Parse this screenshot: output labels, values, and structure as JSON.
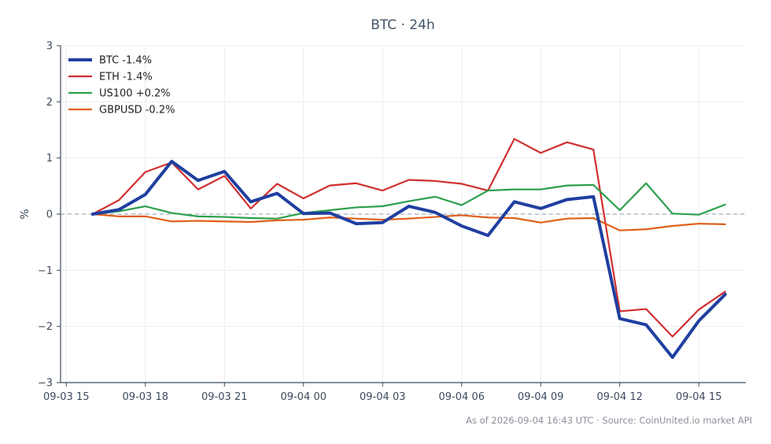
{
  "chart_data": {
    "type": "line",
    "title": "BTC · 24h",
    "ylabel": "%",
    "xlabel": "",
    "ylim": [
      -3,
      3
    ],
    "yticks": [
      {
        "v": 3,
        "label": "3"
      },
      {
        "v": 2,
        "label": "2"
      },
      {
        "v": 1,
        "label": "1"
      },
      {
        "v": 0,
        "label": "0"
      },
      {
        "v": -1,
        "label": "−1"
      },
      {
        "v": -2,
        "label": "−2"
      },
      {
        "v": -3,
        "label": "−3"
      }
    ],
    "xlim": [
      "2026-09-03T14:47",
      "2026-09-04T16:47"
    ],
    "xticks": [
      {
        "t": "2026-09-03T15:00",
        "label": "09-03 15"
      },
      {
        "t": "2026-09-03T18:00",
        "label": "09-03 18"
      },
      {
        "t": "2026-09-03T21:00",
        "label": "09-03 21"
      },
      {
        "t": "2026-09-04T00:00",
        "label": "09-04 00"
      },
      {
        "t": "2026-09-04T03:00",
        "label": "09-04 03"
      },
      {
        "t": "2026-09-04T06:00",
        "label": "09-04 06"
      },
      {
        "t": "2026-09-04T09:00",
        "label": "09-04 09"
      },
      {
        "t": "2026-09-04T12:00",
        "label": "09-04 12"
      },
      {
        "t": "2026-09-04T15:00",
        "label": "09-04 15"
      }
    ],
    "x": [
      "2026-09-03T16:00",
      "2026-09-03T17:00",
      "2026-09-03T18:00",
      "2026-09-03T19:00",
      "2026-09-03T20:00",
      "2026-09-03T21:00",
      "2026-09-03T22:00",
      "2026-09-03T23:00",
      "2026-09-04T00:00",
      "2026-09-04T01:00",
      "2026-09-04T02:00",
      "2026-09-04T03:00",
      "2026-09-04T04:00",
      "2026-09-04T05:00",
      "2026-09-04T06:00",
      "2026-09-04T07:00",
      "2026-09-04T08:00",
      "2026-09-04T09:00",
      "2026-09-04T10:00",
      "2026-09-04T11:00",
      "2026-09-04T12:00",
      "2026-09-04T13:00",
      "2026-09-04T14:00",
      "2026-09-04T15:00",
      "2026-09-04T16:00"
    ],
    "series": [
      {
        "name": "BTC -1.4%",
        "color": "#1f3fa0",
        "width": 4,
        "values": [
          0,
          0.08,
          0.35,
          0.94,
          0.6,
          0.76,
          0.22,
          0.37,
          0.01,
          0.02,
          -0.17,
          -0.15,
          0.14,
          0.03,
          -0.21,
          -0.38,
          0.22,
          0.1,
          0.26,
          0.31,
          -1.86,
          -1.97,
          -2.55,
          -1.9,
          -1.43
        ]
      },
      {
        "name": "ETH -1.4%",
        "color": "#d12f2f",
        "width": 2.2,
        "values": [
          0,
          0.25,
          0.75,
          0.92,
          0.44,
          0.68,
          0.1,
          0.54,
          0.28,
          0.51,
          0.55,
          0.42,
          0.61,
          0.59,
          0.54,
          0.42,
          1.34,
          1.09,
          1.28,
          1.15,
          -1.73,
          -1.69,
          -2.18,
          -1.7,
          -1.38
        ]
      },
      {
        "name": "US100 +0.2%",
        "color": "#2ca04c",
        "width": 2.2,
        "values": [
          0,
          0.05,
          0.14,
          0.02,
          -0.04,
          -0.05,
          -0.07,
          -0.08,
          0.02,
          0.07,
          0.12,
          0.14,
          0.23,
          0.31,
          0.16,
          0.42,
          0.44,
          0.44,
          0.51,
          0.52,
          0.07,
          0.55,
          0.01,
          -0.01,
          0.17
        ]
      },
      {
        "name": "GBPUSD -0.2%",
        "color": "#e0601a",
        "width": 2.2,
        "values": [
          0,
          -0.04,
          -0.04,
          -0.13,
          -0.12,
          -0.13,
          -0.14,
          -0.11,
          -0.1,
          -0.06,
          -0.08,
          -0.1,
          -0.08,
          -0.05,
          -0.02,
          -0.06,
          -0.07,
          -0.15,
          -0.08,
          -0.07,
          -0.29,
          -0.27,
          -0.21,
          -0.17,
          -0.18
        ]
      }
    ],
    "zero_line": true,
    "grid": true,
    "legend": "top-left"
  },
  "footer": "As of 2026-09-04 16:43 UTC · Source: CoinUnited.io market API",
  "colors": {
    "axis": "#3d4a5c",
    "grid": "#ececec",
    "zero_line": "#8e9bb3"
  }
}
